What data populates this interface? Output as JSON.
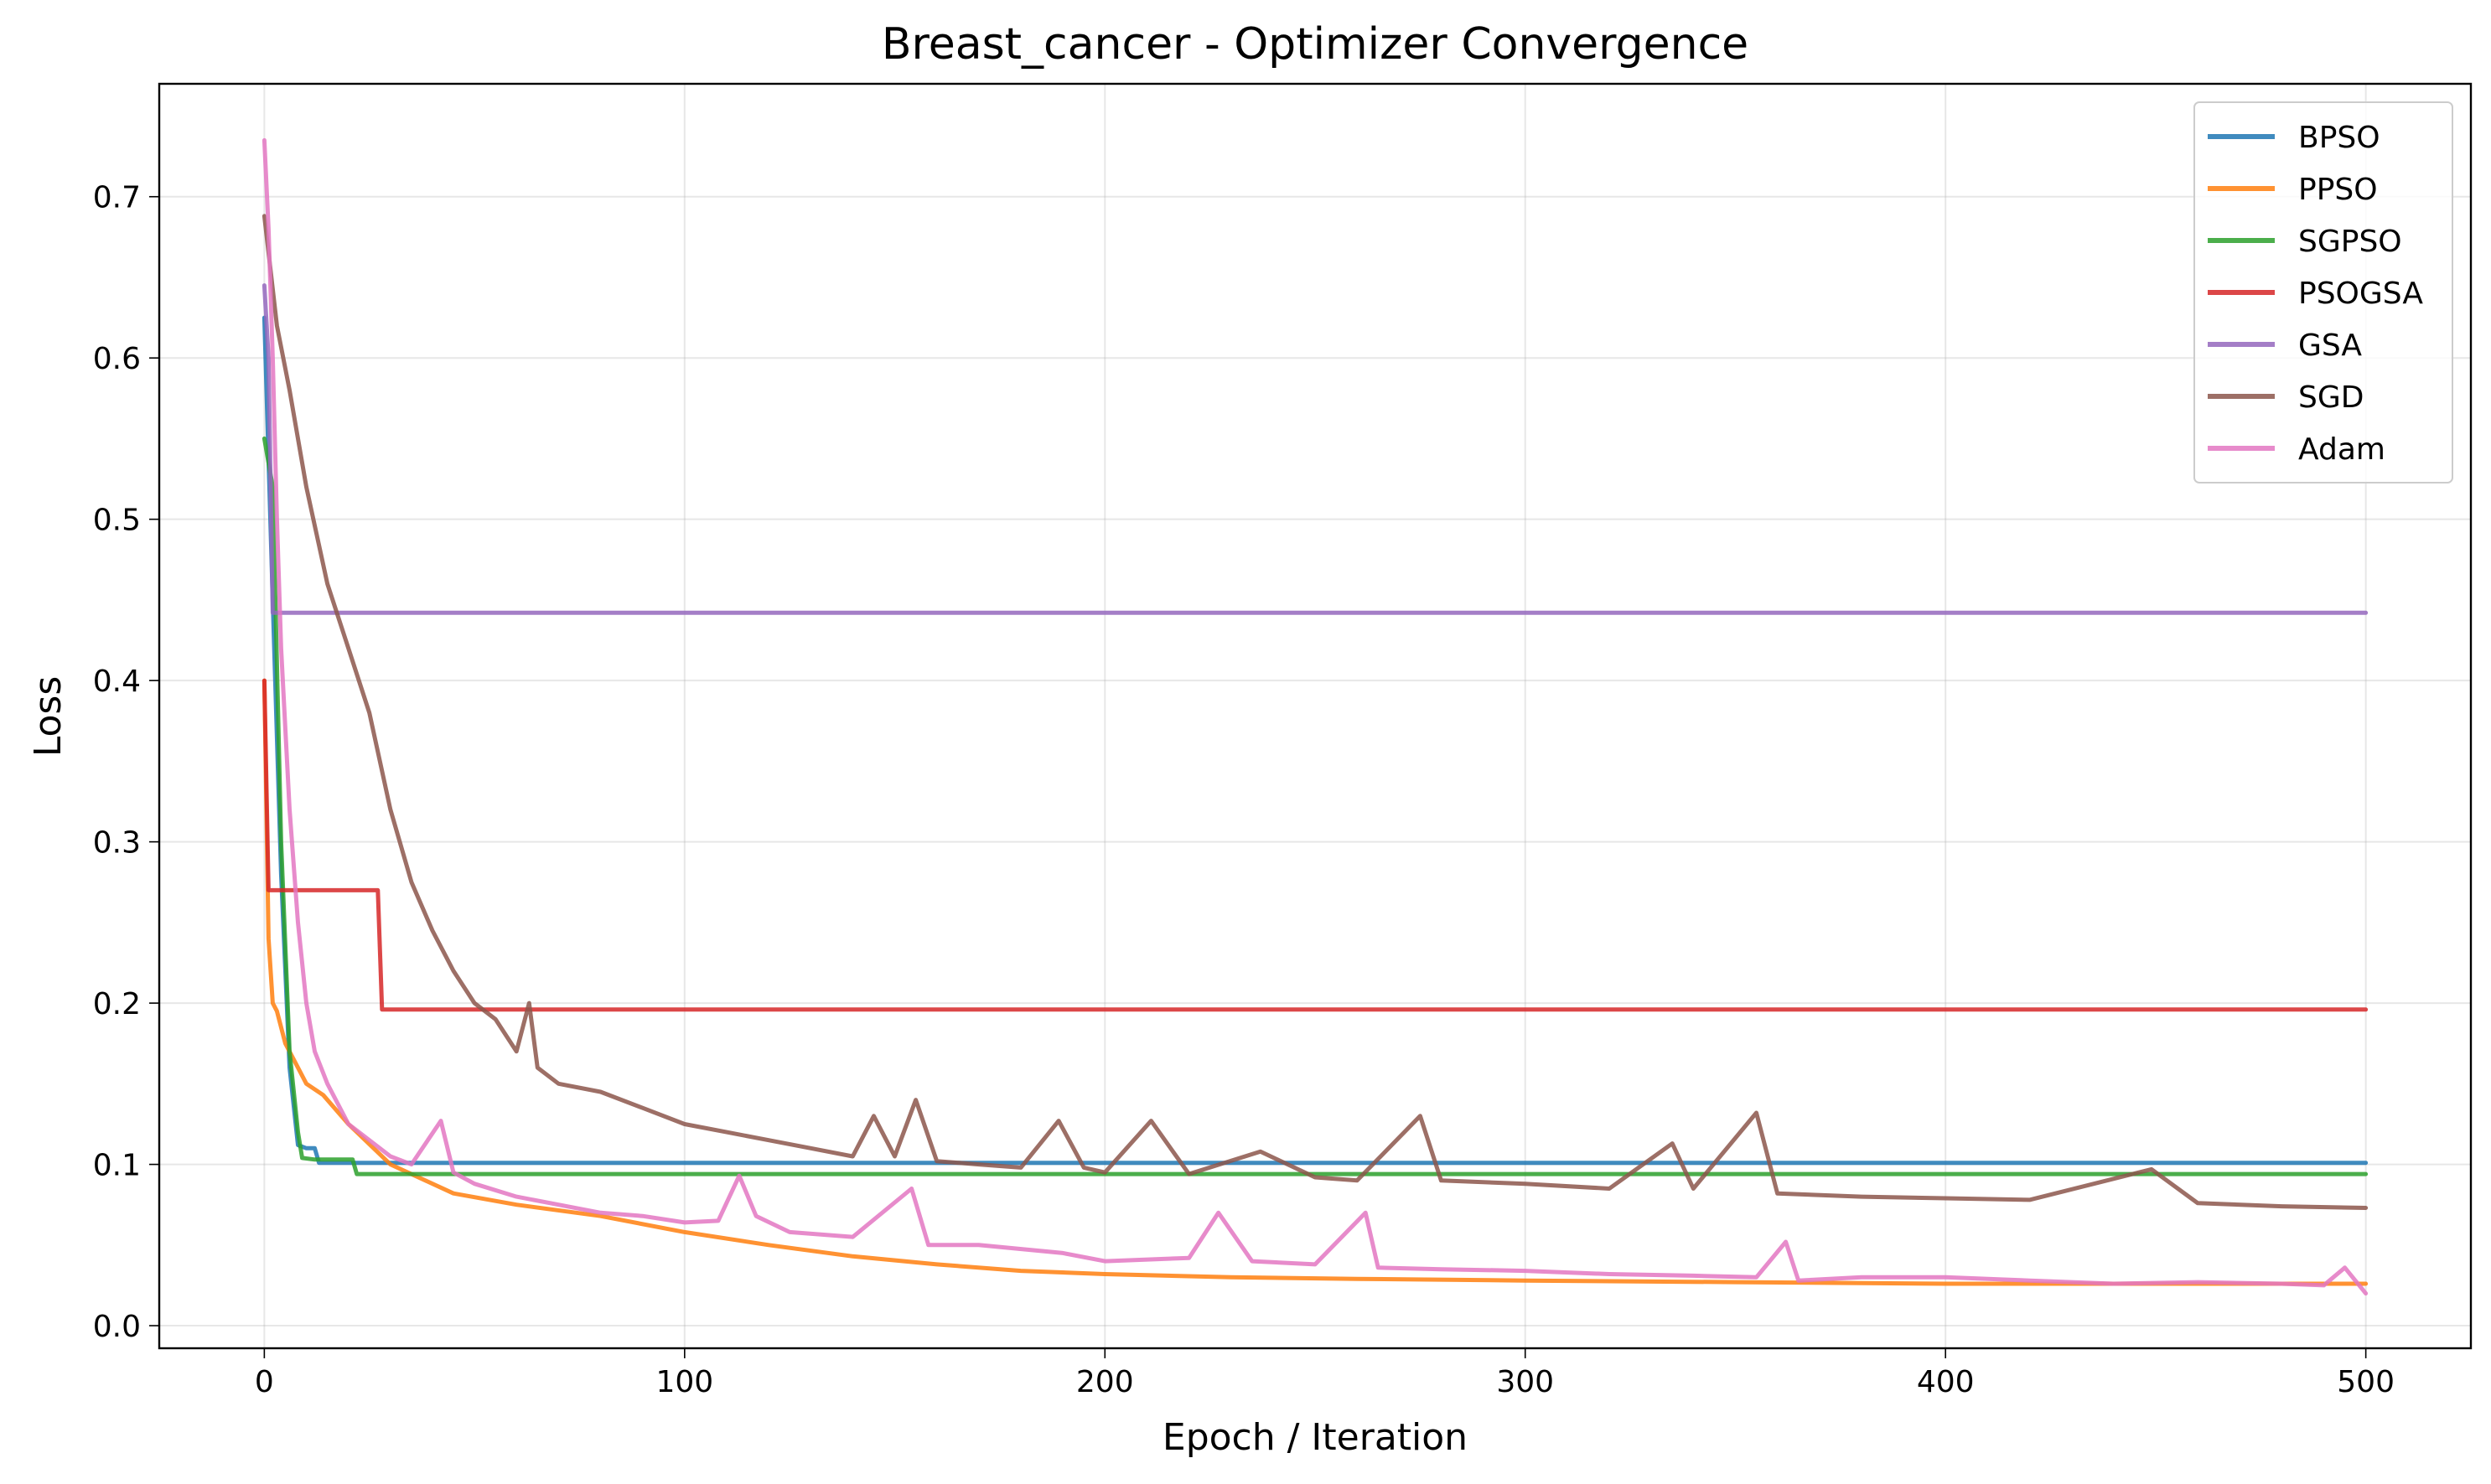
{
  "chart_data": {
    "type": "line",
    "title": "Breast_cancer - Optimizer Convergence",
    "xlabel": "Epoch / Iteration",
    "ylabel": "Loss",
    "xlim": [
      -25,
      525
    ],
    "ylim": [
      -0.014,
      0.77
    ],
    "xticks": [
      0,
      100,
      200,
      300,
      400,
      500
    ],
    "yticks": [
      0.0,
      0.1,
      0.2,
      0.3,
      0.4,
      0.5,
      0.6,
      0.7
    ],
    "xtick_labels": [
      "0",
      "100",
      "200",
      "300",
      "400",
      "500"
    ],
    "ytick_labels": [
      "0.0",
      "0.1",
      "0.2",
      "0.3",
      "0.4",
      "0.5",
      "0.6",
      "0.7"
    ],
    "grid": true,
    "legend_position": "top-right",
    "series": [
      {
        "name": "BPSO",
        "color": "#1f77b4",
        "x": [
          0,
          2,
          4,
          6,
          8,
          10,
          12,
          13,
          500
        ],
        "y": [
          0.625,
          0.45,
          0.28,
          0.16,
          0.112,
          0.11,
          0.11,
          0.101,
          0.101
        ]
      },
      {
        "name": "PPSO",
        "color": "#ff7f0e",
        "x": [
          0,
          1,
          2,
          3,
          5,
          7,
          10,
          14,
          20,
          30,
          45,
          60,
          80,
          100,
          120,
          140,
          160,
          180,
          200,
          230,
          260,
          300,
          350,
          400,
          450,
          500
        ],
        "y": [
          0.4,
          0.24,
          0.2,
          0.195,
          0.175,
          0.165,
          0.15,
          0.143,
          0.125,
          0.1,
          0.082,
          0.075,
          0.068,
          0.058,
          0.05,
          0.043,
          0.038,
          0.034,
          0.032,
          0.03,
          0.029,
          0.028,
          0.027,
          0.026,
          0.026,
          0.026
        ]
      },
      {
        "name": "SGPSO",
        "color": "#2ca02c",
        "x": [
          0,
          2,
          4,
          6,
          8,
          9,
          12,
          21,
          22,
          500
        ],
        "y": [
          0.55,
          0.52,
          0.3,
          0.17,
          0.12,
          0.104,
          0.103,
          0.103,
          0.094,
          0.094
        ]
      },
      {
        "name": "PSOGSA",
        "color": "#d62728",
        "x": [
          0,
          1,
          2,
          27,
          28,
          500
        ],
        "y": [
          0.4,
          0.27,
          0.27,
          0.27,
          0.196,
          0.196
        ]
      },
      {
        "name": "GSA",
        "color": "#9467bd",
        "x": [
          0,
          1,
          2,
          3,
          500
        ],
        "y": [
          0.645,
          0.6,
          0.442,
          0.442,
          0.442
        ]
      },
      {
        "name": "SGD",
        "color": "#8c564b",
        "x": [
          0,
          3,
          6,
          10,
          15,
          20,
          25,
          30,
          35,
          40,
          45,
          50,
          55,
          60,
          63,
          65,
          70,
          80,
          90,
          100,
          110,
          120,
          130,
          140,
          145,
          150,
          155,
          160,
          170,
          180,
          189,
          195,
          200,
          211,
          220,
          237,
          250,
          260,
          275,
          280,
          300,
          320,
          335,
          340,
          355,
          360,
          380,
          400,
          420,
          449,
          460,
          480,
          500
        ],
        "y": [
          0.688,
          0.62,
          0.58,
          0.52,
          0.46,
          0.42,
          0.38,
          0.32,
          0.275,
          0.245,
          0.22,
          0.2,
          0.19,
          0.17,
          0.2,
          0.16,
          0.15,
          0.145,
          0.135,
          0.125,
          0.12,
          0.115,
          0.11,
          0.105,
          0.13,
          0.105,
          0.14,
          0.102,
          0.1,
          0.098,
          0.127,
          0.098,
          0.095,
          0.127,
          0.094,
          0.108,
          0.092,
          0.09,
          0.13,
          0.09,
          0.088,
          0.085,
          0.113,
          0.085,
          0.132,
          0.082,
          0.08,
          0.079,
          0.078,
          0.097,
          0.076,
          0.074,
          0.073
        ]
      },
      {
        "name": "Adam",
        "color": "#e377c2",
        "x": [
          0,
          1,
          2,
          3,
          4,
          6,
          8,
          10,
          12,
          15,
          20,
          25,
          30,
          35,
          42,
          45,
          50,
          60,
          70,
          80,
          90,
          100,
          108,
          113,
          117,
          125,
          140,
          154,
          158,
          170,
          190,
          200,
          220,
          227,
          235,
          250,
          262,
          265,
          280,
          300,
          320,
          340,
          355,
          362,
          365,
          380,
          400,
          420,
          440,
          460,
          480,
          490,
          495,
          500
        ],
        "y": [
          0.735,
          0.68,
          0.6,
          0.5,
          0.42,
          0.32,
          0.25,
          0.2,
          0.17,
          0.15,
          0.125,
          0.115,
          0.105,
          0.1,
          0.127,
          0.095,
          0.088,
          0.08,
          0.075,
          0.07,
          0.068,
          0.064,
          0.065,
          0.093,
          0.068,
          0.058,
          0.055,
          0.085,
          0.05,
          0.05,
          0.045,
          0.04,
          0.042,
          0.07,
          0.04,
          0.038,
          0.07,
          0.036,
          0.035,
          0.034,
          0.032,
          0.031,
          0.03,
          0.052,
          0.028,
          0.03,
          0.03,
          0.028,
          0.026,
          0.027,
          0.026,
          0.025,
          0.036,
          0.02
        ]
      }
    ]
  }
}
